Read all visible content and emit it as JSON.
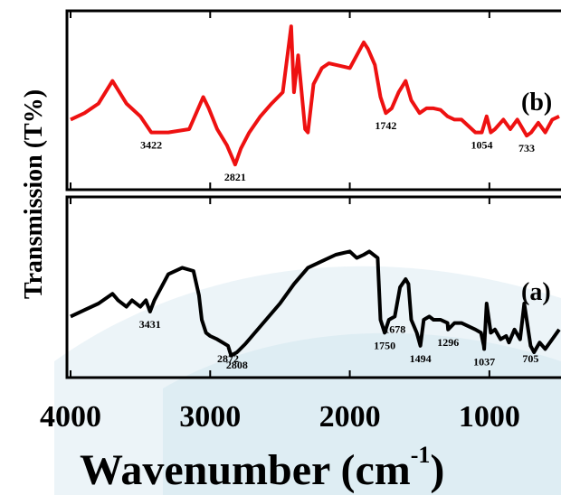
{
  "colors": {
    "panel_b": "#ee1111",
    "panel_a": "#000000",
    "watermark": "#dcebf3"
  },
  "chart_data": {
    "type": "line",
    "title": "",
    "xlabel_main": "Wavenumber (cm",
    "xlabel_sup": "-1",
    "xlabel_close": ")",
    "ylabel": "Transmission (T%)",
    "xlim": [
      4000,
      500
    ],
    "x_ticks": [
      {
        "value": 4000,
        "label": "4000"
      },
      {
        "value": 3000,
        "label": "3000"
      },
      {
        "value": 2000,
        "label": "2000"
      },
      {
        "value": 1000,
        "label": "1000"
      }
    ],
    "grid": false,
    "panels": [
      {
        "label": "(b)",
        "color": "#ee1111",
        "ylim": [
          0,
          100
        ],
        "x": [
          4000,
          3900,
          3800,
          3700,
          3650,
          3600,
          3500,
          3422,
          3300,
          3150,
          3050,
          3010,
          2950,
          2880,
          2821,
          2780,
          2720,
          2640,
          2560,
          2480,
          2420,
          2400,
          2370,
          2320,
          2300,
          2260,
          2200,
          2150,
          2100,
          2000,
          1900,
          1870,
          1820,
          1780,
          1742,
          1700,
          1650,
          1600,
          1560,
          1500,
          1450,
          1400,
          1350,
          1300,
          1250,
          1200,
          1150,
          1100,
          1054,
          1020,
          990,
          960,
          900,
          850,
          800,
          760,
          733,
          700,
          650,
          600,
          550,
          500
        ],
        "y": [
          38,
          42,
          48,
          62,
          55,
          48,
          40,
          30,
          30,
          32,
          52,
          45,
          32,
          22,
          10,
          20,
          30,
          40,
          48,
          55,
          96,
          55,
          78,
          32,
          30,
          60,
          70,
          73,
          72,
          70,
          86,
          82,
          72,
          52,
          42,
          45,
          55,
          62,
          50,
          42,
          45,
          45,
          44,
          40,
          38,
          38,
          34,
          30,
          30,
          40,
          30,
          32,
          38,
          32,
          38,
          32,
          28,
          30,
          36,
          30,
          38,
          40
        ],
        "annotations": [
          {
            "x": 3422,
            "text": "3422"
          },
          {
            "x": 2821,
            "text": "2821"
          },
          {
            "x": 1742,
            "text": "1742"
          },
          {
            "x": 1054,
            "text": "1054"
          },
          {
            "x": 733,
            "text": "733"
          }
        ]
      },
      {
        "label": "(a)",
        "color": "#000000",
        "ylim": [
          0,
          100
        ],
        "x": [
          4000,
          3900,
          3800,
          3700,
          3660,
          3600,
          3560,
          3500,
          3460,
          3431,
          3400,
          3300,
          3200,
          3120,
          3080,
          3060,
          3030,
          3000,
          2950,
          2872,
          2850,
          2808,
          2750,
          2700,
          2600,
          2500,
          2400,
          2300,
          2200,
          2100,
          2000,
          1950,
          1900,
          1860,
          1800,
          1780,
          1750,
          1720,
          1678,
          1640,
          1600,
          1580,
          1560,
          1520,
          1494,
          1470,
          1430,
          1400,
          1350,
          1300,
          1296,
          1250,
          1200,
          1150,
          1100,
          1060,
          1040,
          1037,
          1020,
          990,
          960,
          920,
          880,
          860,
          820,
          780,
          750,
          705,
          680,
          640,
          600,
          550,
          500
        ],
        "y": [
          32,
          36,
          40,
          46,
          42,
          38,
          42,
          38,
          42,
          35,
          42,
          58,
          62,
          60,
          45,
          30,
          22,
          20,
          18,
          14,
          8,
          10,
          15,
          20,
          30,
          40,
          52,
          62,
          66,
          70,
          72,
          68,
          70,
          72,
          68,
          30,
          22,
          30,
          32,
          50,
          55,
          52,
          30,
          22,
          14,
          30,
          32,
          30,
          30,
          28,
          24,
          28,
          28,
          26,
          24,
          22,
          14,
          12,
          40,
          22,
          24,
          18,
          20,
          16,
          24,
          18,
          40,
          14,
          10,
          16,
          12,
          18,
          24
        ],
        "annotations": [
          {
            "x": 3431,
            "text": "3431"
          },
          {
            "x": 2872,
            "text": "2872"
          },
          {
            "x": 2808,
            "text": "2808"
          },
          {
            "x": 1750,
            "text": "1750"
          },
          {
            "x": 1678,
            "text": "1678"
          },
          {
            "x": 1494,
            "text": "1494"
          },
          {
            "x": 1296,
            "text": "1296"
          },
          {
            "x": 1037,
            "text": "1037"
          },
          {
            "x": 705,
            "text": "705"
          }
        ]
      }
    ]
  }
}
